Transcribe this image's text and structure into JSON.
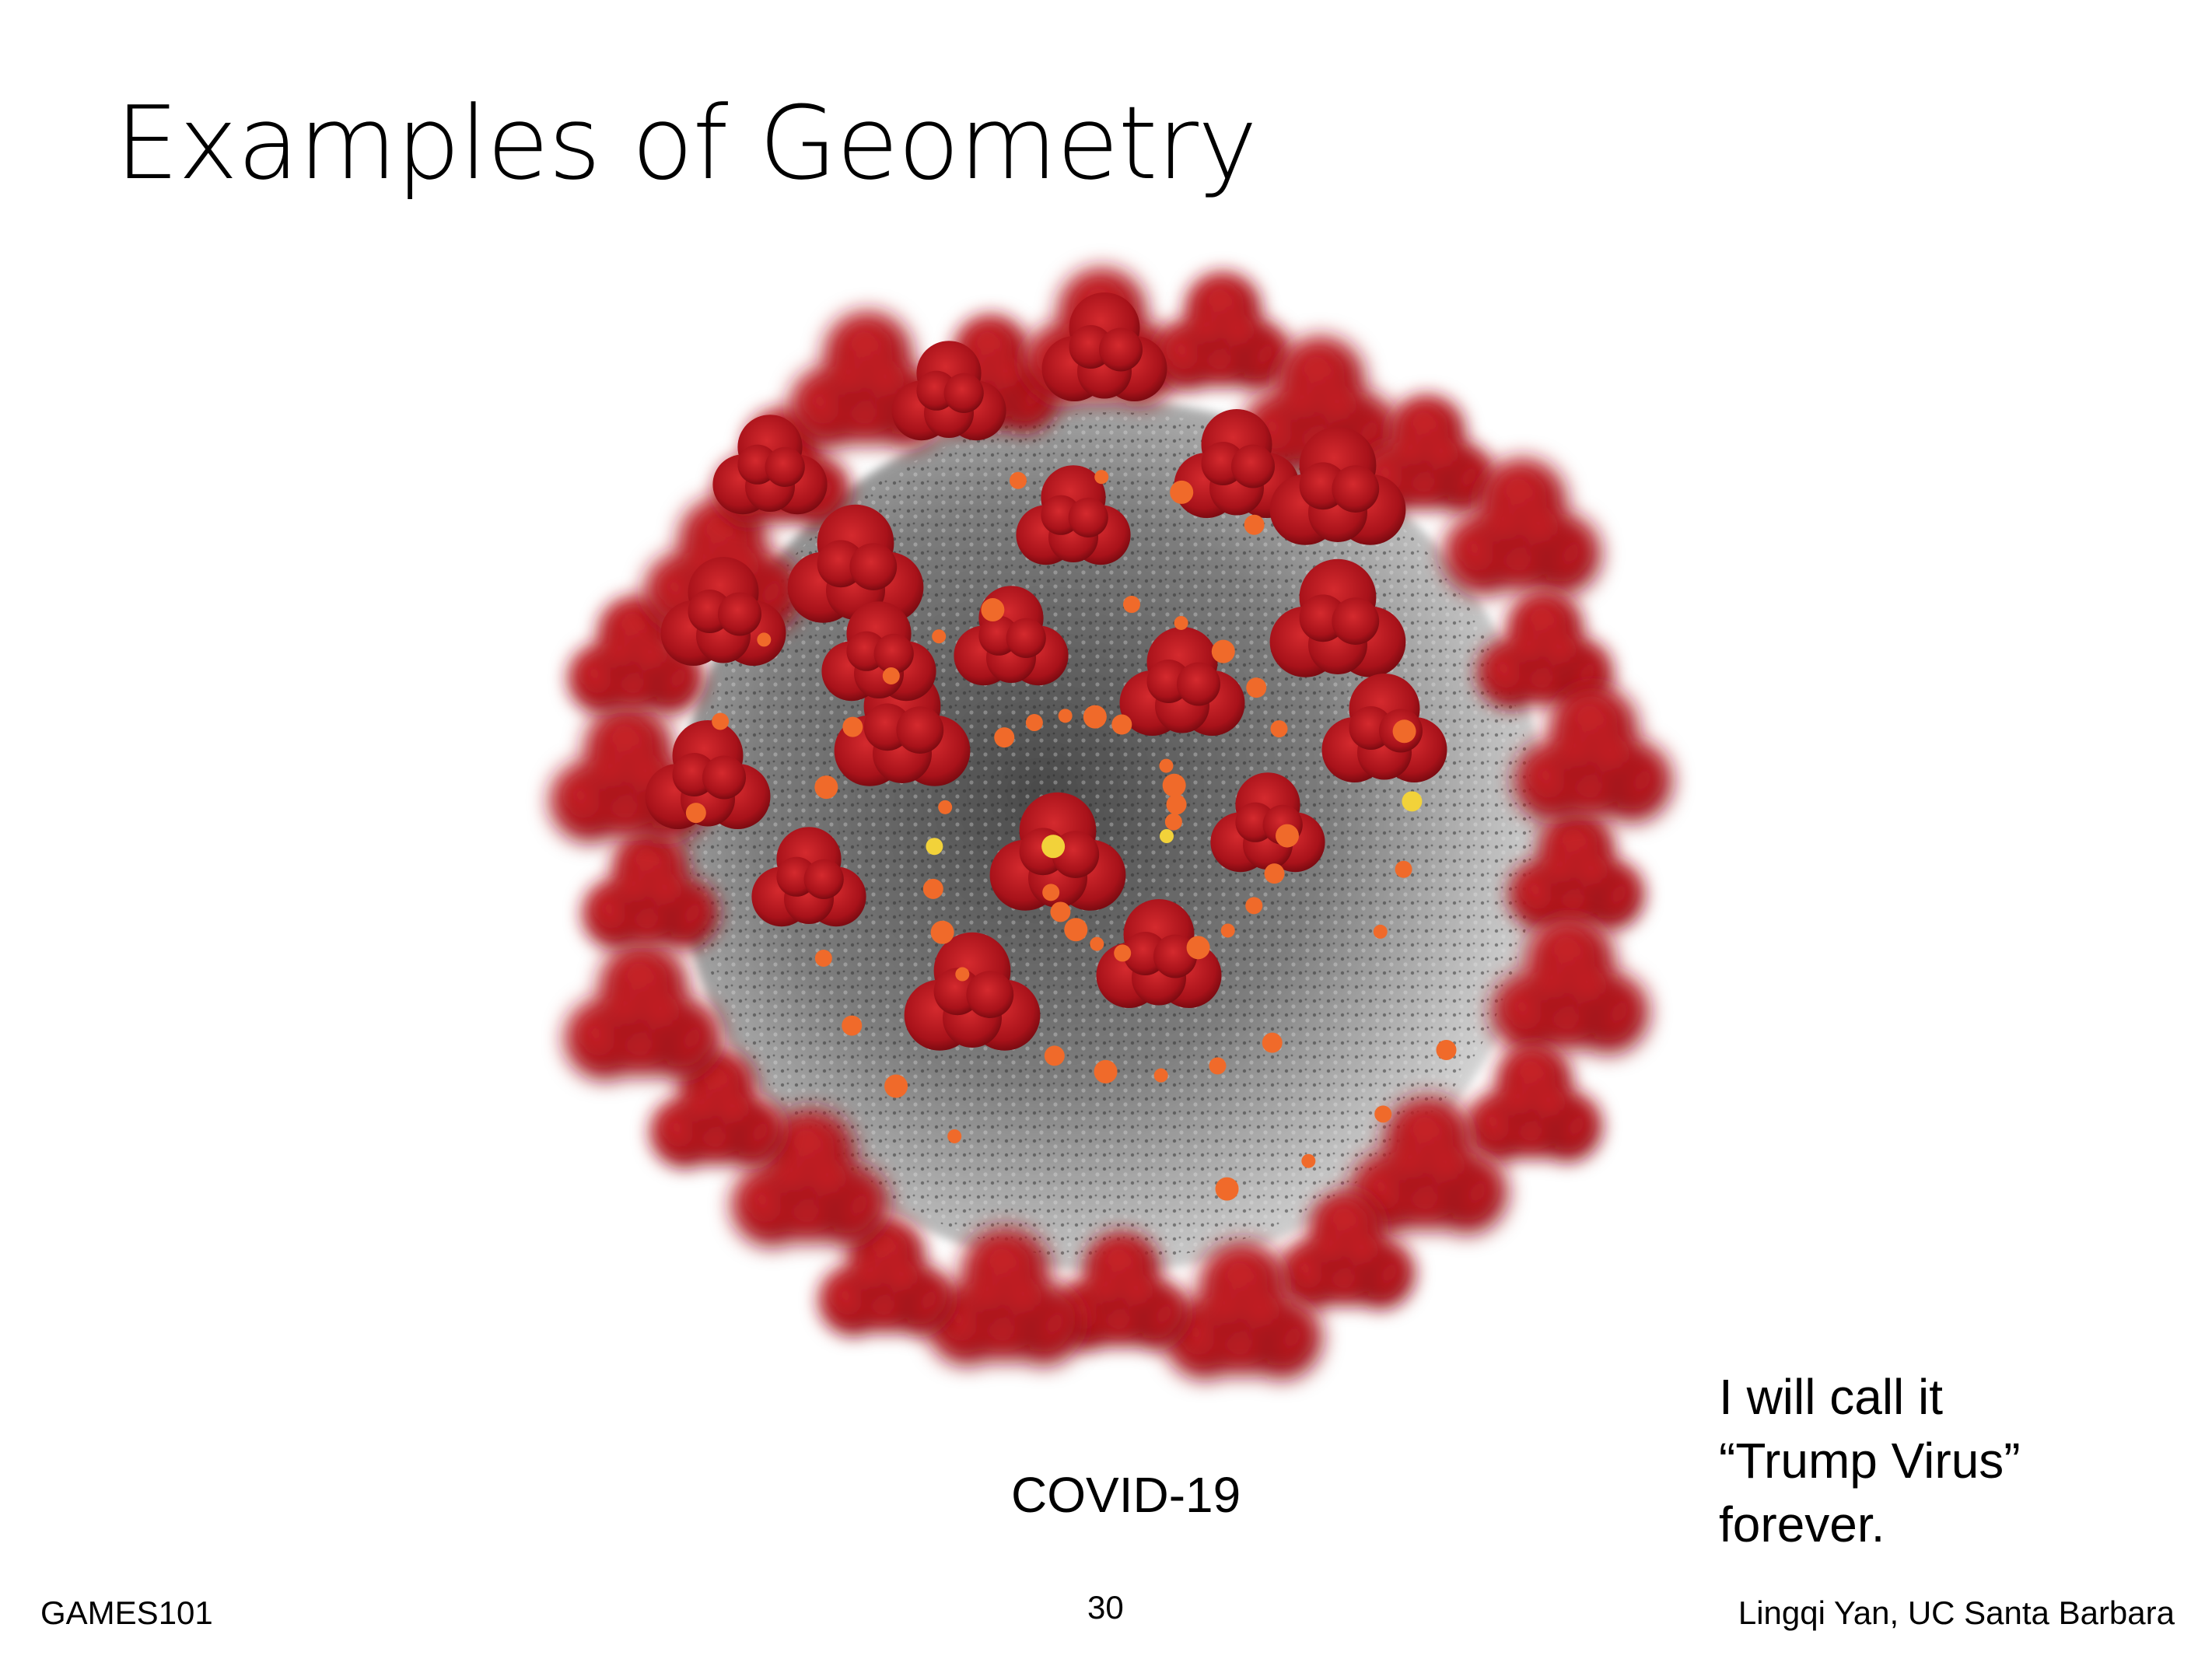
{
  "slide": {
    "title": "Examples of Geometry",
    "caption": "COVID-19",
    "note_lines": [
      "I will call it",
      "“Trump Virus”",
      "forever."
    ],
    "footer": {
      "left": "GAMES101",
      "page_number": "30",
      "right": "Lingqi Yan, UC Santa Barbara"
    }
  },
  "colors": {
    "spike": "#b5141c",
    "spike_dark": "#7a0a10",
    "envelope": "#8a8a8a",
    "protein_orange": "#f06a2a",
    "protein_yellow": "#f2d23a"
  }
}
